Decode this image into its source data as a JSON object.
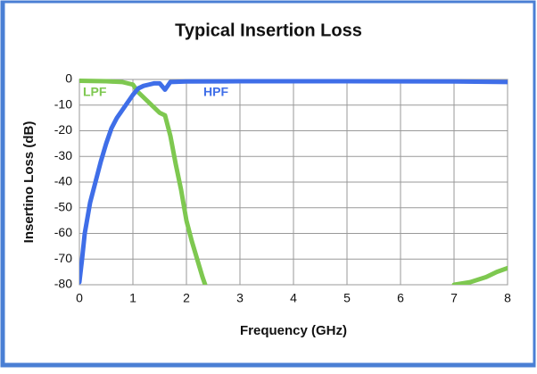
{
  "chart_data": {
    "type": "line",
    "title": "Typical Insertion Loss",
    "xlabel": "Frequency (GHz)",
    "ylabel": "Insertino Loss (dB)",
    "xlim": [
      0,
      8
    ],
    "ylim": [
      -80,
      0
    ],
    "xticks": [
      0,
      1,
      2,
      3,
      4,
      5,
      6,
      7,
      8
    ],
    "yticks": [
      0,
      -10,
      -20,
      -30,
      -40,
      -50,
      -60,
      -70,
      -80
    ],
    "grid": true,
    "series": [
      {
        "name": "LPF",
        "color": "#7ec850",
        "x": [
          0,
          0.5,
          0.8,
          1.0,
          1.1,
          1.2,
          1.3,
          1.4,
          1.5,
          1.6,
          1.7,
          1.8,
          1.9,
          2.0,
          2.1,
          2.2,
          2.3,
          2.35,
          4.5,
          7.0,
          7.3,
          7.6,
          7.8,
          8.0
        ],
        "values": [
          -0.5,
          -0.7,
          -1,
          -2,
          -5,
          -7,
          -9,
          -11,
          -13,
          -14,
          -22,
          -33,
          -43,
          -55,
          -63,
          -70,
          -77,
          -80,
          null,
          -80,
          -79,
          -77,
          -75,
          -73.5
        ]
      },
      {
        "name": "HPF",
        "color": "#3f6ee8",
        "x": [
          0,
          0.05,
          0.1,
          0.2,
          0.3,
          0.4,
          0.5,
          0.6,
          0.7,
          0.8,
          0.9,
          1.0,
          1.1,
          1.2,
          1.3,
          1.4,
          1.5,
          1.6,
          1.7,
          2.0,
          3.0,
          5.0,
          7.0,
          8.0
        ],
        "values": [
          -79,
          -70,
          -60,
          -48,
          -40,
          -32,
          -25,
          -19,
          -15,
          -12,
          -9,
          -6,
          -3.5,
          -2.5,
          -2,
          -1.5,
          -1.5,
          -4,
          -1,
          -0.8,
          -0.7,
          -0.7,
          -0.8,
          -1
        ]
      }
    ]
  }
}
